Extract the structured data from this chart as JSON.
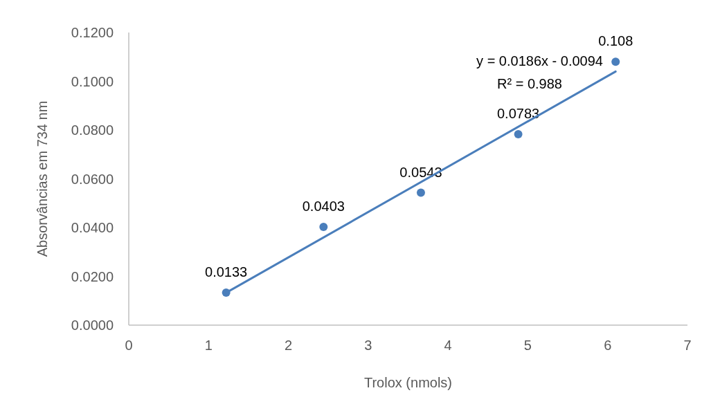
{
  "chart_data": {
    "type": "scatter",
    "xlabel": "Trolox (nmols)",
    "ylabel": "Absorvâncias em 734 nm",
    "series": [
      {
        "color": "#4a7ebb",
        "x": [
          1.22,
          2.44,
          3.66,
          4.88,
          6.1
        ],
        "values": [
          0.0133,
          0.0403,
          0.0543,
          0.0783,
          0.108
        ],
        "data_labels": true,
        "marker": "circle"
      },
      {
        "type": "line",
        "color": "#4a7ebb",
        "x": [
          1.22,
          6.1
        ],
        "values": [
          0.0133,
          0.104
        ]
      }
    ],
    "xlim": [
      0,
      7
    ],
    "xticks": [
      0,
      1,
      2,
      3,
      4,
      5,
      6,
      7
    ],
    "ylim": [
      0,
      0.12
    ],
    "yticks": [
      {
        "value": 0,
        "label": "0.0000"
      },
      {
        "value": 0.02,
        "label": "0.0200"
      },
      {
        "value": 0.04,
        "label": "0.0400"
      },
      {
        "value": 0.06,
        "label": "0.0600"
      },
      {
        "value": 0.08,
        "label": "0.0800"
      },
      {
        "value": 0.1,
        "label": "0.1000"
      },
      {
        "value": 0.12,
        "label": "0.1200"
      }
    ],
    "annotations": [
      "y = 0.0186x - 0.0094",
      "R² = 0.988"
    ],
    "grid": false
  }
}
